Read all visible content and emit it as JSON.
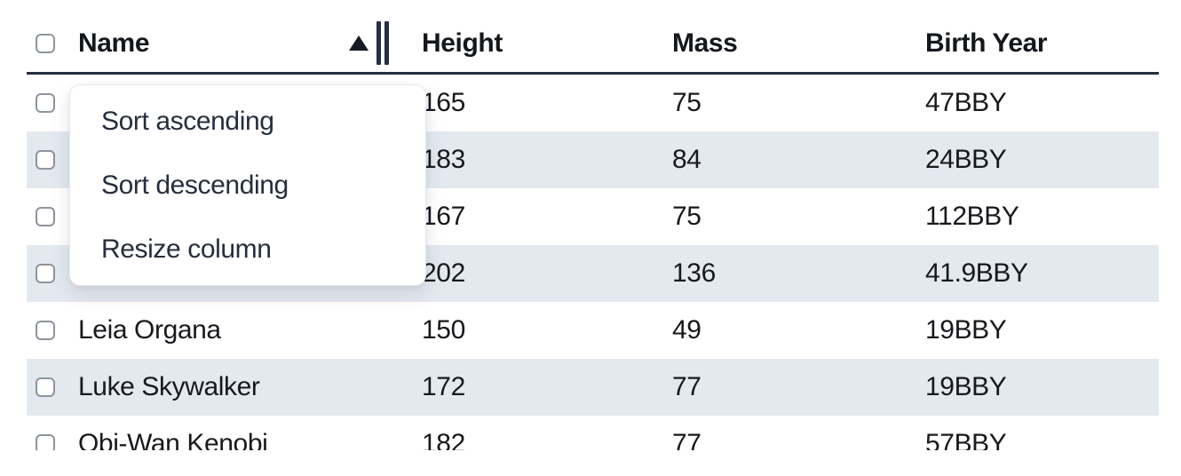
{
  "table": {
    "columns": {
      "select": {
        "label": ""
      },
      "name": {
        "label": "Name",
        "sort_direction": "ascending"
      },
      "height": {
        "label": "Height"
      },
      "mass": {
        "label": "Mass"
      },
      "birth_year": {
        "label": "Birth Year"
      }
    },
    "rows": [
      {
        "name": "",
        "height": "165",
        "mass": "75",
        "birth_year": "47BBY",
        "striped": false,
        "name_occluded_by_menu": true
      },
      {
        "name": "",
        "height": "183",
        "mass": "84",
        "birth_year": "24BBY",
        "striped": true,
        "name_occluded_by_menu": true
      },
      {
        "name": "",
        "height": "167",
        "mass": "75",
        "birth_year": "112BBY",
        "striped": false,
        "name_occluded_by_menu": true
      },
      {
        "name": "",
        "height": "202",
        "mass": "136",
        "birth_year": "41.9BBY",
        "striped": true,
        "name_occluded_by_menu": true
      },
      {
        "name": "Leia Organa",
        "height": "150",
        "mass": "49",
        "birth_year": "19BBY",
        "striped": false
      },
      {
        "name": "Luke Skywalker",
        "height": "172",
        "mass": "77",
        "birth_year": "19BBY",
        "striped": true
      },
      {
        "name": "Obi-Wan Kenobi",
        "height": "182",
        "mass": "77",
        "birth_year": "57BBY",
        "striped": false
      }
    ]
  },
  "column_menu": {
    "items": [
      {
        "label": "Sort ascending"
      },
      {
        "label": "Sort descending"
      },
      {
        "label": "Resize column"
      }
    ]
  },
  "colors": {
    "header_border": "#252f40",
    "row_stripe": "#e4e9f0",
    "cell_text": "#17191d",
    "menu_text": "#262e3e",
    "checkbox_border": "#8d949c"
  }
}
